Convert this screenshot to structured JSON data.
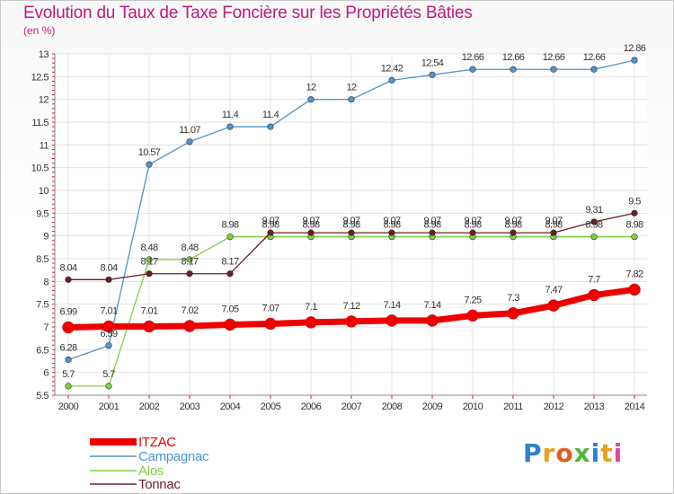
{
  "title": "Evolution du Taux de Taxe Foncière sur les Propriétés Bâties",
  "subtitle": "(en %)",
  "logo": [
    "P",
    "r",
    "o",
    "x",
    "i",
    "t",
    "i"
  ],
  "chart_data": {
    "type": "line",
    "title": "Evolution du Taux de Taxe Foncière sur les Propriétés Bâties",
    "ylabel": "(en %)",
    "xlabel": "",
    "ylim": [
      5.5,
      13
    ],
    "yticks": [
      "5.5",
      "6",
      "6.5",
      "7",
      "7.5",
      "8",
      "8.5",
      "9",
      "9.5",
      "10",
      "10.5",
      "11",
      "11.5",
      "12",
      "12.5",
      "13"
    ],
    "x": [
      "2000",
      "2001",
      "2002",
      "2003",
      "2004",
      "2005",
      "2006",
      "2007",
      "2008",
      "2009",
      "2010",
      "2011",
      "2012",
      "2013",
      "2014"
    ],
    "series": [
      {
        "name": "ITZAC",
        "color": "#ee0000",
        "values": [
          6.99,
          7.01,
          7.01,
          7.02,
          7.05,
          7.07,
          7.1,
          7.12,
          7.14,
          7.14,
          7.25,
          7.3,
          7.47,
          7.7,
          7.82
        ],
        "labels": [
          "6.99",
          "7.01",
          "7.01",
          "7.02",
          "7.05",
          "7.07",
          "7.1",
          "7.12",
          "7.14",
          "7.14",
          "7.25",
          "7.3",
          "7.47",
          "7.7",
          "7.82"
        ]
      },
      {
        "name": "Campagnac",
        "color": "#4f94cf",
        "values": [
          6.28,
          6.59,
          10.57,
          11.07,
          11.4,
          11.4,
          12,
          12,
          12.42,
          12.54,
          12.66,
          12.66,
          12.66,
          12.66,
          12.86
        ],
        "labels": [
          "6.28",
          "6.59",
          "10.57",
          "11.07",
          "11.4",
          "11.4",
          "12",
          "12",
          "12.42",
          "12.54",
          "12.66",
          "12.66",
          "12.66",
          "12.66",
          "12.86"
        ]
      },
      {
        "name": "Alos",
        "color": "#7dd142",
        "values": [
          5.7,
          5.7,
          8.48,
          8.48,
          8.98,
          8.98,
          8.98,
          8.98,
          8.98,
          8.98,
          8.98,
          8.98,
          8.98,
          8.98,
          8.98
        ],
        "labels": [
          "5.7",
          "5.7",
          "8.48",
          "8.48",
          "8.98",
          "8.98",
          "8.98",
          "8.98",
          "8.98",
          "8.98",
          "8.98",
          "8.98",
          "8.98",
          "8.98",
          "8.98"
        ]
      },
      {
        "name": "Tonnac",
        "color": "#6b1e26",
        "values": [
          8.04,
          8.04,
          8.17,
          8.17,
          8.17,
          9.07,
          9.07,
          9.07,
          9.07,
          9.07,
          9.07,
          9.07,
          9.07,
          9.31,
          9.5
        ],
        "labels": [
          "8.04",
          "8.04",
          "8.17",
          "8.17",
          "8.17",
          "9.07",
          "9.07",
          "9.07",
          "9.07",
          "9.07",
          "9.07",
          "9.07",
          "9.07",
          "9.31",
          "9.5"
        ]
      }
    ],
    "legend_position": "bottom-left"
  }
}
